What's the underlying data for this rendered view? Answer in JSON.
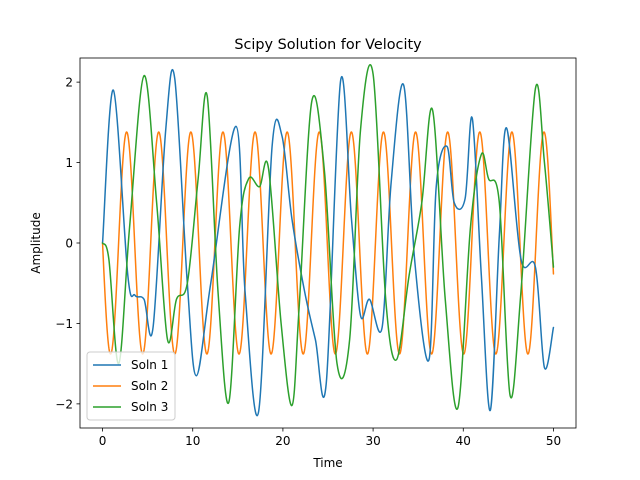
{
  "chart_data": {
    "type": "line",
    "title": "Scipy Solution for Velocity",
    "xlabel": "Time",
    "ylabel": "Amplitude",
    "xlim": [
      -2.5,
      52.5
    ],
    "ylim": [
      -2.3,
      2.3
    ],
    "xticks": [
      0,
      10,
      20,
      30,
      40,
      50
    ],
    "yticks": [
      -2,
      -1,
      0,
      1,
      2
    ],
    "xtick_labels": [
      "0",
      "10",
      "20",
      "30",
      "40",
      "50"
    ],
    "ytick_labels": [
      "−2",
      "−1",
      "0",
      "1",
      "2"
    ],
    "grid": false,
    "legend_position": "lower-left",
    "series": [
      {
        "name": "Soln 1",
        "color": "#1f77b4",
        "x": [
          0,
          1.2,
          2.8,
          3.6,
          4.6,
          5.6,
          7.0,
          8.0,
          9.4,
          10.4,
          12.0,
          14.8,
          15.8,
          17.3,
          18.8,
          19.9,
          21.0,
          22.4,
          23.6,
          24.8,
          26.4,
          27.6,
          28.6,
          29.6,
          31.0,
          32.0,
          33.4,
          34.6,
          36.2,
          37.0,
          38.2,
          39.0,
          40.2,
          41.0,
          42.0,
          43.0,
          44.0,
          44.8,
          46.4,
          48.0,
          49.0,
          50.0
        ],
        "y": [
          0,
          1.9,
          -0.4,
          -0.65,
          -0.7,
          -1.05,
          1.4,
          2.05,
          -0.5,
          -1.65,
          -0.5,
          1.45,
          -0.6,
          -2.1,
          1.2,
          1.33,
          0.3,
          -0.6,
          -1.2,
          -1.75,
          2.02,
          0.3,
          -0.9,
          -0.7,
          -1.05,
          0.75,
          1.96,
          -0.2,
          -1.45,
          0.7,
          1.2,
          0.5,
          0.55,
          1.55,
          -0.4,
          -2.08,
          0.1,
          1.43,
          -0.2,
          -0.3,
          -1.55,
          -1.05
        ]
      },
      {
        "name": "Soln 2",
        "color": "#ff7f0e",
        "period": 3.56,
        "amplitude": 1.38,
        "x_start": 0,
        "x_end": 50
      },
      {
        "name": "Soln 3",
        "color": "#2ca02c",
        "x": [
          0,
          0.7,
          1.8,
          3.0,
          4.6,
          6.0,
          7.2,
          8.2,
          9.4,
          10.6,
          11.6,
          12.8,
          14.0,
          15.2,
          16.2,
          17.4,
          18.4,
          19.8,
          21.0,
          21.8,
          23.2,
          24.6,
          26.0,
          27.4,
          28.6,
          30.0,
          31.4,
          32.6,
          34.0,
          35.4,
          36.6,
          38.0,
          39.4,
          40.8,
          42.0,
          42.8,
          44.0,
          45.2,
          46.4,
          48.0,
          49.0,
          50.0
        ],
        "y": [
          0,
          -0.2,
          -1.5,
          0.2,
          2.08,
          0.5,
          -1.2,
          -0.7,
          -0.5,
          0.8,
          1.83,
          -0.6,
          -1.98,
          0.2,
          0.8,
          0.7,
          0.93,
          -1.0,
          -2.02,
          -0.8,
          1.76,
          0.9,
          -1.5,
          -1.2,
          1.4,
          2.1,
          -0.7,
          -1.45,
          -0.4,
          0.5,
          1.65,
          -0.7,
          -2.05,
          0.2,
          1.1,
          0.8,
          0.5,
          -1.9,
          -0.6,
          1.92,
          1.0,
          -0.3
        ]
      }
    ]
  }
}
